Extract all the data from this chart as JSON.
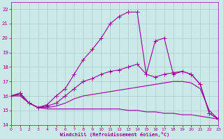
{
  "xlabel": "Windchill (Refroidissement éolien,°C)",
  "xlim": [
    0,
    23
  ],
  "ylim": [
    14,
    22.5
  ],
  "xticks": [
    0,
    1,
    2,
    3,
    4,
    5,
    6,
    7,
    8,
    9,
    10,
    11,
    12,
    13,
    14,
    15,
    16,
    17,
    18,
    19,
    20,
    21,
    22,
    23
  ],
  "yticks": [
    14,
    15,
    16,
    17,
    18,
    19,
    20,
    21,
    22
  ],
  "bg_color": "#cce8e8",
  "grid_color": "#aacccc",
  "line_color": "#990099",
  "lines": [
    {
      "x": [
        0,
        1,
        2,
        3,
        4,
        5,
        6,
        7,
        8,
        9,
        10,
        11,
        12,
        13,
        14,
        15,
        16,
        17,
        18,
        19,
        20,
        21,
        22,
        23
      ],
      "y": [
        16.0,
        16.0,
        15.5,
        15.2,
        15.1,
        15.1,
        15.1,
        15.1,
        15.1,
        15.1,
        15.1,
        15.1,
        15.1,
        15.0,
        15.0,
        14.9,
        14.9,
        14.8,
        14.8,
        14.7,
        14.7,
        14.6,
        14.5,
        14.4
      ],
      "marker": false
    },
    {
      "x": [
        0,
        1,
        2,
        3,
        4,
        5,
        6,
        7,
        8,
        9,
        10,
        11,
        12,
        13,
        14,
        15,
        16,
        17,
        18,
        19,
        20,
        21,
        22,
        23
      ],
      "y": [
        16.0,
        16.1,
        15.5,
        15.2,
        15.2,
        15.3,
        15.5,
        15.8,
        16.0,
        16.1,
        16.2,
        16.3,
        16.4,
        16.5,
        16.6,
        16.7,
        16.8,
        16.9,
        17.0,
        17.0,
        16.9,
        16.5,
        15.0,
        14.4
      ],
      "marker": false
    },
    {
      "x": [
        0,
        1,
        2,
        3,
        4,
        5,
        6,
        7,
        8,
        9,
        10,
        11,
        12,
        13,
        14,
        15,
        16,
        17,
        18,
        19,
        20,
        21,
        22,
        23
      ],
      "y": [
        16.0,
        16.2,
        15.5,
        15.2,
        15.3,
        15.5,
        16.0,
        16.5,
        17.0,
        17.2,
        17.5,
        17.7,
        17.8,
        18.0,
        18.2,
        17.5,
        17.3,
        17.5,
        17.6,
        17.7,
        17.5,
        16.8,
        14.8,
        14.4
      ],
      "marker": true
    },
    {
      "x": [
        0,
        1,
        2,
        3,
        4,
        5,
        6,
        7,
        8,
        9,
        10,
        11,
        12,
        13,
        14,
        15,
        16,
        17,
        18,
        19,
        20,
        21,
        22,
        23
      ],
      "y": [
        16.0,
        16.2,
        15.5,
        15.2,
        15.4,
        16.0,
        16.5,
        17.5,
        18.5,
        19.2,
        20.0,
        21.0,
        21.5,
        21.8,
        21.8,
        17.5,
        19.8,
        20.0,
        17.5,
        17.7,
        17.5,
        16.8,
        14.8,
        14.4
      ],
      "marker": true
    }
  ]
}
